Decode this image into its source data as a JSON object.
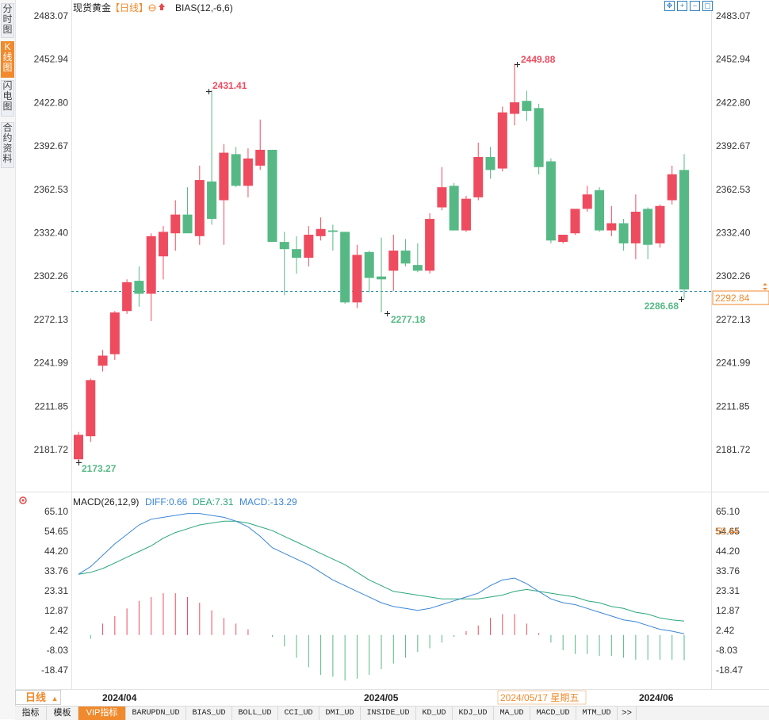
{
  "header": {
    "instrument": "现货黄金",
    "period_tag": "【日线】",
    "indicator": "BIAS(12,-6,6)"
  },
  "sidebar": {
    "tabs": [
      {
        "label": "分时图",
        "active": false
      },
      {
        "label": "K线图",
        "active": true
      },
      {
        "label": "闪电图",
        "active": false
      },
      {
        "label": "合约资料",
        "active": false
      }
    ]
  },
  "toolbar": {
    "icons": [
      "move-icon",
      "zoom-in-icon",
      "zoom-out-icon",
      "fullscreen-icon"
    ]
  },
  "price_axis": {
    "ticks": [
      "2483.07",
      "2452.94",
      "2422.80",
      "2392.67",
      "2362.53",
      "2332.40",
      "2302.26",
      "2272.13",
      "2241.99",
      "2211.85",
      "2181.72"
    ],
    "current_price": "2292.84"
  },
  "annotations": {
    "low_start": "2173.27",
    "high_first": "2431.41",
    "low_mid": "2277.18",
    "high_max": "2449.88",
    "low_last": "2286.68"
  },
  "macd": {
    "title": "MACD(26,12,9)",
    "diff_label": "DIFF:0.66",
    "dea_label": "DEA:7.31",
    "macd_label": "MACD:-13.29",
    "axis_ticks": [
      "65.10",
      "54.65",
      "44.20",
      "33.76",
      "23.31",
      "12.87",
      "2.42",
      "-8.03",
      "-18.47"
    ],
    "right_marker": "58.44"
  },
  "time_axis": {
    "labels": [
      "2024/04",
      "2024/05",
      "2024/06"
    ],
    "highlight": "2024/05/17 星期五"
  },
  "bottom": {
    "period_button": "日线",
    "indicators": [
      "指标",
      "模板",
      "VIP指标",
      "BARUPDN_UD",
      "BIAS_UD",
      "BOLL_UD",
      "CCI_UD",
      "DMI_UD",
      "INSIDE_UD",
      "KD_UD",
      "KDJ_UD",
      "MA_UD",
      "MACD_UD",
      "MTM_UD",
      ">>"
    ]
  },
  "colors": {
    "up": "#ee4b5f",
    "down": "#56b985",
    "diff_line": "#3b86d6",
    "dea_line": "#2aa77a",
    "accent": "#f08a2c"
  },
  "chart_data": {
    "type": "candlestick",
    "ylim": [
      2165,
      2485
    ],
    "candles": [
      {
        "o": 2175,
        "h": 2194,
        "l": 2173.27,
        "c": 2192
      },
      {
        "o": 2191,
        "h": 2231,
        "l": 2187,
        "c": 2230
      },
      {
        "o": 2240,
        "h": 2251,
        "l": 2236,
        "c": 2247
      },
      {
        "o": 2248,
        "h": 2278,
        "l": 2244,
        "c": 2277
      },
      {
        "o": 2278,
        "h": 2300,
        "l": 2276,
        "c": 2298
      },
      {
        "o": 2299,
        "h": 2309,
        "l": 2281,
        "c": 2290
      },
      {
        "o": 2290,
        "h": 2332,
        "l": 2271,
        "c": 2330
      },
      {
        "o": 2316,
        "h": 2337,
        "l": 2300,
        "c": 2333
      },
      {
        "o": 2332,
        "h": 2355,
        "l": 2320,
        "c": 2345
      },
      {
        "o": 2345,
        "h": 2364,
        "l": 2333,
        "c": 2332
      },
      {
        "o": 2330,
        "h": 2379,
        "l": 2324,
        "c": 2369
      },
      {
        "o": 2368,
        "h": 2431.41,
        "l": 2338,
        "c": 2342
      },
      {
        "o": 2355,
        "h": 2394,
        "l": 2324,
        "c": 2388
      },
      {
        "o": 2387,
        "h": 2392,
        "l": 2364,
        "c": 2365
      },
      {
        "o": 2365,
        "h": 2391,
        "l": 2357,
        "c": 2384
      },
      {
        "o": 2379,
        "h": 2411,
        "l": 2376,
        "c": 2390
      },
      {
        "o": 2390,
        "h": 2390,
        "l": 2326,
        "c": 2326
      },
      {
        "o": 2326,
        "h": 2333,
        "l": 2289,
        "c": 2321
      },
      {
        "o": 2321,
        "h": 2330,
        "l": 2304,
        "c": 2315
      },
      {
        "o": 2315,
        "h": 2337,
        "l": 2309,
        "c": 2331
      },
      {
        "o": 2330,
        "h": 2343,
        "l": 2327,
        "c": 2335
      },
      {
        "o": 2334,
        "h": 2338,
        "l": 2320,
        "c": 2333
      },
      {
        "o": 2333,
        "h": 2333,
        "l": 2283,
        "c": 2284
      },
      {
        "o": 2284,
        "h": 2324,
        "l": 2280,
        "c": 2317
      },
      {
        "o": 2319,
        "h": 2320,
        "l": 2291,
        "c": 2301
      },
      {
        "o": 2302,
        "h": 2329,
        "l": 2277.18,
        "c": 2300
      },
      {
        "o": 2306,
        "h": 2331,
        "l": 2292,
        "c": 2320
      },
      {
        "o": 2320,
        "h": 2328,
        "l": 2309,
        "c": 2311
      },
      {
        "o": 2310,
        "h": 2325,
        "l": 2305,
        "c": 2306
      },
      {
        "o": 2306,
        "h": 2346,
        "l": 2304,
        "c": 2342
      },
      {
        "o": 2350,
        "h": 2378,
        "l": 2348,
        "c": 2364
      },
      {
        "o": 2365,
        "h": 2367,
        "l": 2334,
        "c": 2334
      },
      {
        "o": 2334,
        "h": 2358,
        "l": 2333,
        "c": 2356
      },
      {
        "o": 2357,
        "h": 2395,
        "l": 2355,
        "c": 2385
      },
      {
        "o": 2385,
        "h": 2392,
        "l": 2370,
        "c": 2376
      },
      {
        "o": 2377,
        "h": 2420,
        "l": 2375,
        "c": 2416
      },
      {
        "o": 2415,
        "h": 2449.88,
        "l": 2407,
        "c": 2423
      },
      {
        "o": 2424,
        "h": 2431,
        "l": 2410,
        "c": 2417
      },
      {
        "o": 2419,
        "h": 2422,
        "l": 2373,
        "c": 2378
      },
      {
        "o": 2382,
        "h": 2384,
        "l": 2325,
        "c": 2327
      },
      {
        "o": 2326,
        "h": 2330,
        "l": 2325,
        "c": 2331
      },
      {
        "o": 2332,
        "h": 2347,
        "l": 2331,
        "c": 2349
      },
      {
        "o": 2349,
        "h": 2365,
        "l": 2347,
        "c": 2359
      },
      {
        "o": 2362,
        "h": 2364,
        "l": 2333,
        "c": 2334
      },
      {
        "o": 2334,
        "h": 2351,
        "l": 2330,
        "c": 2339
      },
      {
        "o": 2339,
        "h": 2342,
        "l": 2320,
        "c": 2325
      },
      {
        "o": 2325,
        "h": 2359,
        "l": 2314,
        "c": 2347
      },
      {
        "o": 2349,
        "h": 2350,
        "l": 2314,
        "c": 2324
      },
      {
        "o": 2325,
        "h": 2352,
        "l": 2322,
        "c": 2351
      },
      {
        "o": 2355,
        "h": 2379,
        "l": 2352,
        "c": 2373
      },
      {
        "o": 2376,
        "h": 2387,
        "l": 2286.68,
        "c": 2293
      }
    ],
    "macd": {
      "ylim": [
        -26,
        68
      ],
      "diff": [
        32,
        36,
        42,
        48,
        53,
        58,
        61,
        62,
        63,
        64,
        64,
        63,
        62,
        60,
        57,
        52,
        46,
        43,
        40,
        37,
        33,
        29,
        26,
        23,
        20,
        17,
        15,
        14,
        13,
        14,
        16,
        18,
        20,
        22,
        26,
        29,
        30,
        27,
        23,
        19,
        17,
        16,
        14,
        12,
        10,
        8,
        7,
        5,
        3,
        2,
        0.66
      ],
      "dea": [
        32,
        33,
        35,
        38,
        41,
        44,
        47,
        51,
        54,
        56,
        58,
        59,
        60,
        60,
        59,
        57,
        55,
        52,
        49,
        46,
        43,
        40,
        37,
        33,
        29,
        26,
        23,
        22,
        21,
        20,
        19,
        19,
        19,
        19,
        20,
        21,
        23,
        24,
        23,
        22,
        21,
        20,
        18,
        17,
        15,
        14,
        12,
        11,
        9,
        8,
        7.31
      ],
      "hist": [
        0,
        -2,
        6,
        10,
        14,
        18,
        20,
        22,
        22,
        20,
        17,
        13,
        9,
        6,
        3,
        0,
        -1,
        -6,
        -12,
        -17,
        -21,
        -22,
        -24,
        -23,
        -21,
        -18,
        -15,
        -12,
        -9,
        -7,
        -4,
        -1,
        2,
        5,
        9,
        11,
        11,
        6,
        1,
        -4,
        -8,
        -10,
        -10,
        -11,
        -11,
        -12,
        -13,
        -13,
        -13,
        -13,
        -13.29
      ]
    }
  }
}
